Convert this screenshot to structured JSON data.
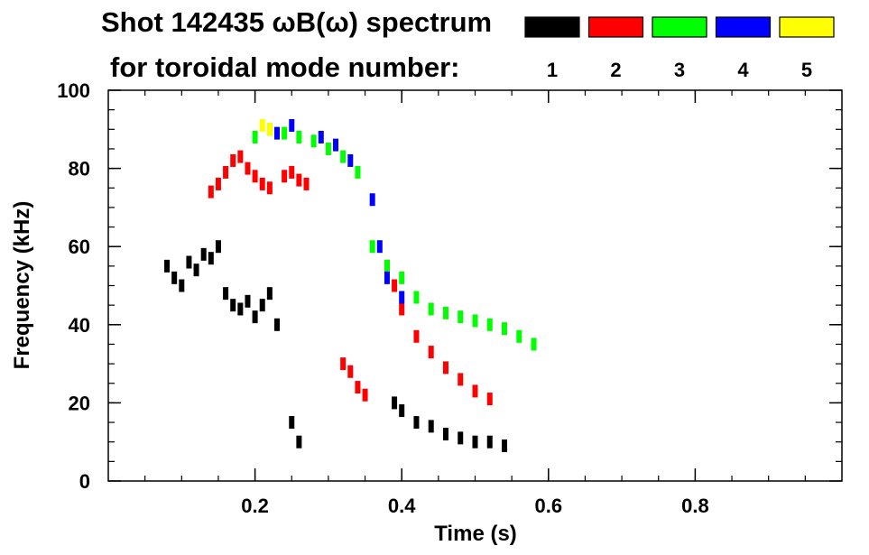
{
  "chart_data": {
    "type": "scatter",
    "title": "Shot 142435 ωB(ω) spectrum",
    "subtitle": "for toroidal mode number:",
    "xlabel": "Time (s)",
    "ylabel": "Frequency (kHz)",
    "xlim": [
      0.0,
      1.0
    ],
    "ylim": [
      0,
      100
    ],
    "x_ticks": [
      0.2,
      0.4,
      0.6,
      0.8
    ],
    "x_tick_labels": [
      "0.2",
      "0.4",
      "0.6",
      "0.8"
    ],
    "y_ticks": [
      0,
      20,
      40,
      60,
      80,
      100
    ],
    "y_tick_labels": [
      "0",
      "20",
      "40",
      "60",
      "80",
      "100"
    ],
    "grid": false,
    "legend_position": "top-right",
    "series": [
      {
        "name": "1",
        "color": "#000000",
        "points": [
          [
            0.08,
            55
          ],
          [
            0.09,
            52
          ],
          [
            0.1,
            50
          ],
          [
            0.11,
            56
          ],
          [
            0.12,
            54
          ],
          [
            0.13,
            58
          ],
          [
            0.14,
            57
          ],
          [
            0.15,
            60
          ],
          [
            0.16,
            48
          ],
          [
            0.17,
            45
          ],
          [
            0.18,
            44
          ],
          [
            0.19,
            46
          ],
          [
            0.2,
            42
          ],
          [
            0.21,
            45
          ],
          [
            0.22,
            48
          ],
          [
            0.23,
            40
          ],
          [
            0.25,
            15
          ],
          [
            0.26,
            10
          ],
          [
            0.39,
            20
          ],
          [
            0.4,
            18
          ],
          [
            0.42,
            15
          ],
          [
            0.44,
            14
          ],
          [
            0.46,
            12
          ],
          [
            0.48,
            11
          ],
          [
            0.5,
            10
          ],
          [
            0.52,
            10
          ],
          [
            0.54,
            9
          ]
        ]
      },
      {
        "name": "2",
        "color": "#ff0000",
        "points": [
          [
            0.14,
            74
          ],
          [
            0.15,
            76
          ],
          [
            0.16,
            79
          ],
          [
            0.17,
            82
          ],
          [
            0.18,
            83
          ],
          [
            0.19,
            80
          ],
          [
            0.2,
            78
          ],
          [
            0.21,
            76
          ],
          [
            0.22,
            75
          ],
          [
            0.24,
            78
          ],
          [
            0.25,
            79
          ],
          [
            0.26,
            77
          ],
          [
            0.27,
            76
          ],
          [
            0.32,
            30
          ],
          [
            0.33,
            28
          ],
          [
            0.34,
            24
          ],
          [
            0.35,
            22
          ],
          [
            0.38,
            55
          ],
          [
            0.39,
            50
          ],
          [
            0.4,
            44
          ],
          [
            0.42,
            37
          ],
          [
            0.44,
            33
          ],
          [
            0.46,
            29
          ],
          [
            0.48,
            26
          ],
          [
            0.5,
            23
          ],
          [
            0.52,
            21
          ]
        ]
      },
      {
        "name": "3",
        "color": "#00ff00",
        "points": [
          [
            0.2,
            88
          ],
          [
            0.22,
            90
          ],
          [
            0.24,
            89
          ],
          [
            0.26,
            88
          ],
          [
            0.28,
            87
          ],
          [
            0.3,
            85
          ],
          [
            0.32,
            83
          ],
          [
            0.34,
            79
          ],
          [
            0.36,
            60
          ],
          [
            0.38,
            55
          ],
          [
            0.4,
            52
          ],
          [
            0.42,
            47
          ],
          [
            0.44,
            44
          ],
          [
            0.46,
            43
          ],
          [
            0.48,
            42
          ],
          [
            0.5,
            41
          ],
          [
            0.52,
            40
          ],
          [
            0.54,
            39
          ],
          [
            0.56,
            37
          ],
          [
            0.58,
            35
          ]
        ]
      },
      {
        "name": "4",
        "color": "#0000ff",
        "points": [
          [
            0.23,
            89
          ],
          [
            0.25,
            91
          ],
          [
            0.29,
            88
          ],
          [
            0.31,
            86
          ],
          [
            0.33,
            82
          ],
          [
            0.36,
            72
          ],
          [
            0.37,
            60
          ],
          [
            0.38,
            52
          ],
          [
            0.4,
            47
          ]
        ]
      },
      {
        "name": "5",
        "color": "#ffff00",
        "points": [
          [
            0.21,
            91
          ],
          [
            0.22,
            90
          ]
        ]
      }
    ]
  }
}
